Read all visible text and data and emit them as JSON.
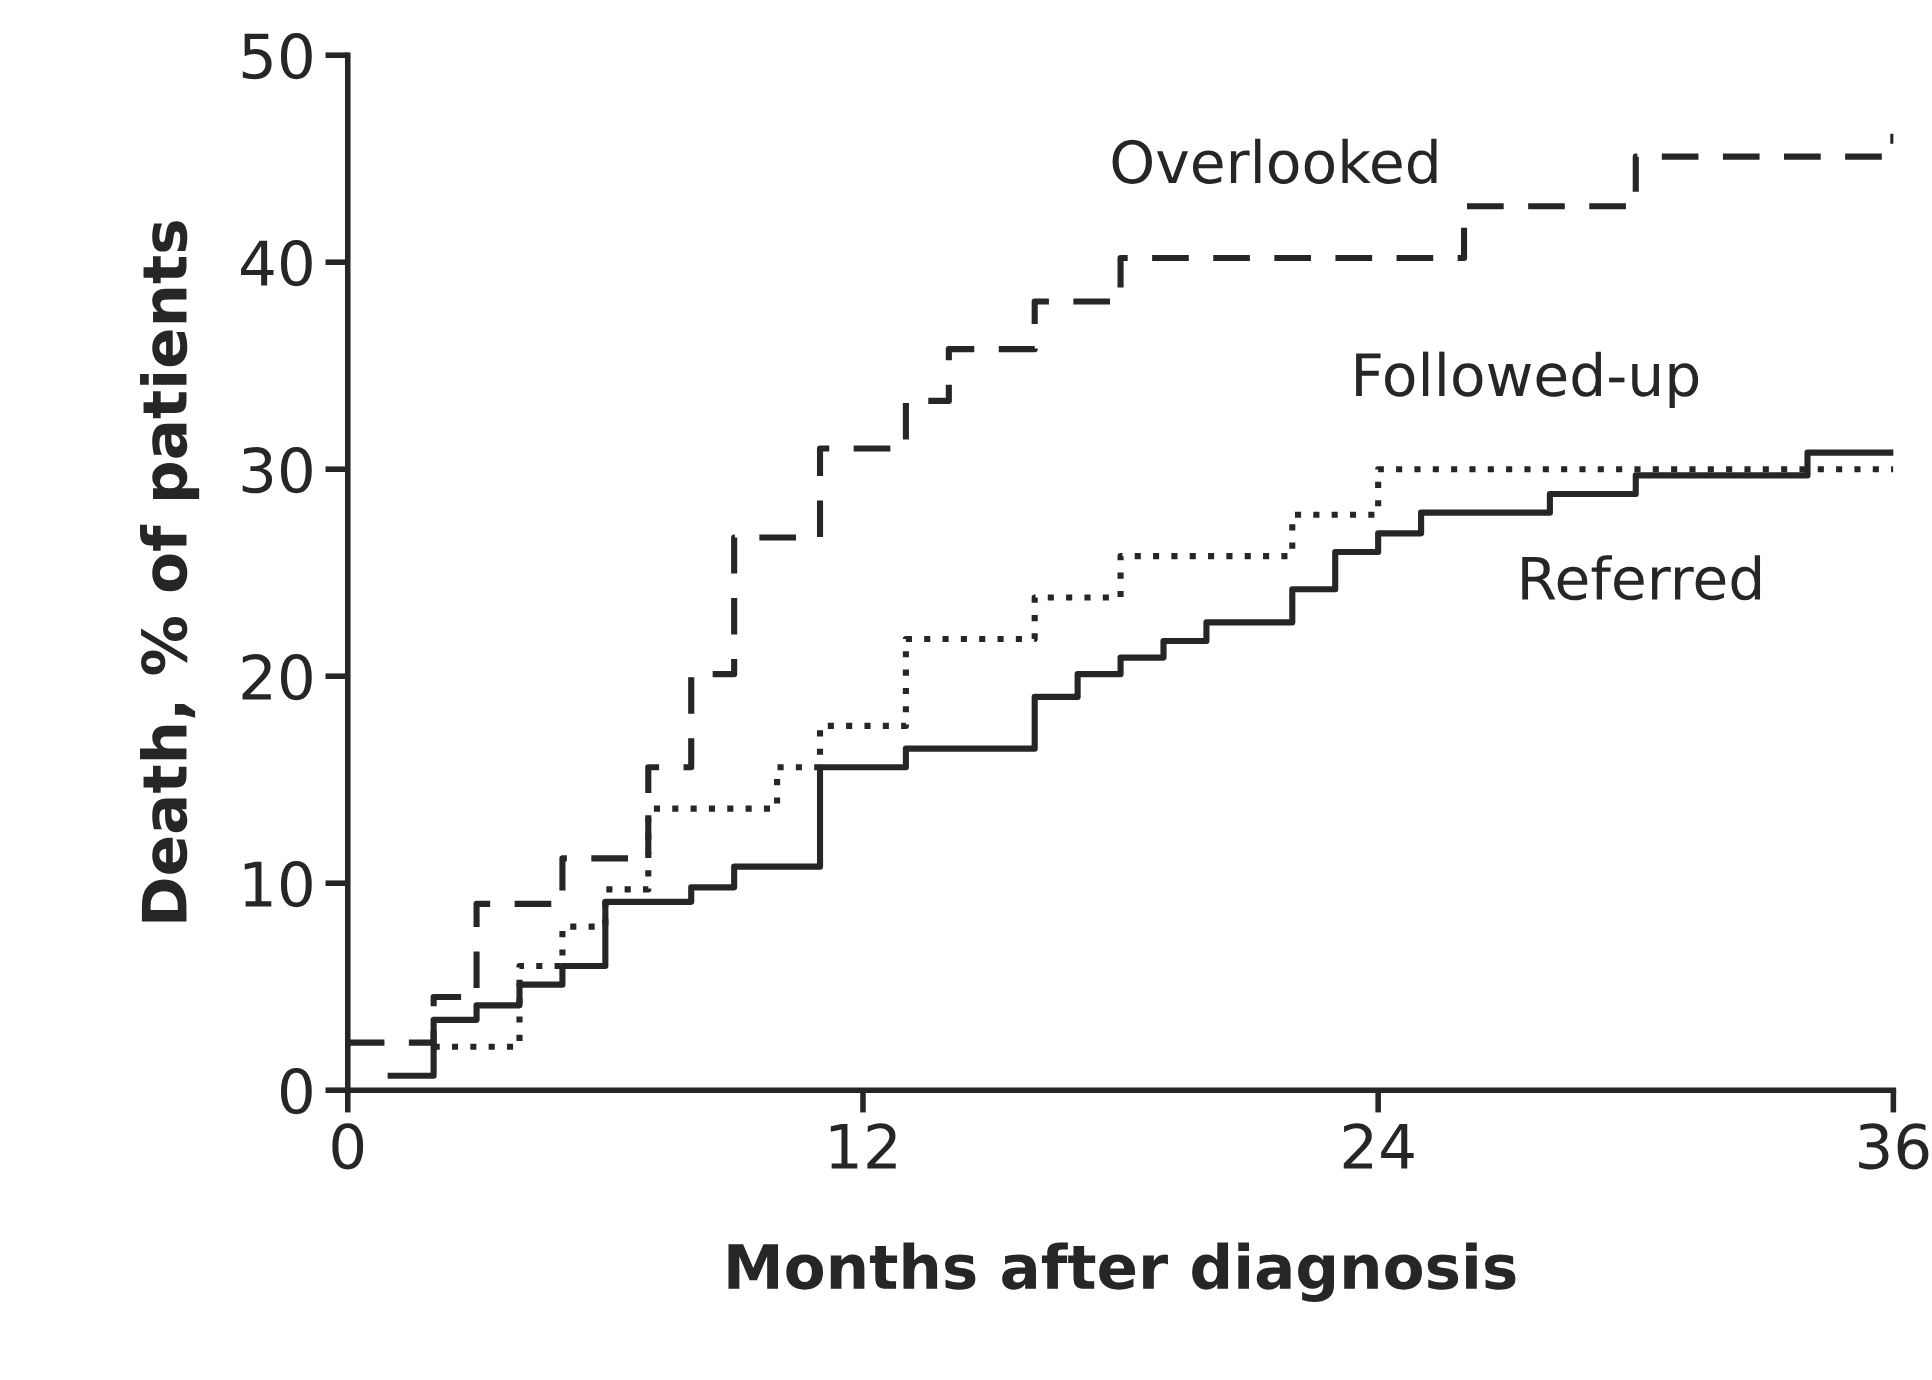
{
  "chart_data": {
    "type": "step",
    "xlabel": "Months after diagnosis",
    "ylabel": "Death, % of patients",
    "xlim": [
      0,
      36
    ],
    "xticks": [
      0,
      12,
      24,
      36
    ],
    "ylim": [
      0,
      50
    ],
    "yticks": [
      0,
      10,
      20,
      30,
      40,
      50
    ],
    "grid": false,
    "marker": "none",
    "series": [
      {
        "name": "Overlooked",
        "color": "#262626",
        "line_style": "dashed",
        "x": [
          0,
          2,
          3,
          5,
          7,
          8,
          9,
          11,
          13,
          14,
          16,
          18,
          26,
          30,
          36
        ],
        "values": [
          2.3,
          4.5,
          9.0,
          11.2,
          15.6,
          20.1,
          26.7,
          31.0,
          33.3,
          35.8,
          38.1,
          40.2,
          42.7,
          45.1,
          46.2
        ]
      },
      {
        "name": "Followed-up",
        "color": "#262626",
        "line_style": "dotted",
        "x": [
          2,
          4,
          5,
          6,
          7,
          10,
          11,
          13,
          16,
          18,
          22,
          24,
          36
        ],
        "values": [
          2.1,
          6.0,
          7.9,
          9.7,
          13.6,
          15.6,
          17.6,
          21.8,
          23.8,
          25.8,
          27.8,
          30.0,
          30.0
        ]
      },
      {
        "name": "Referred",
        "color": "#262626",
        "line_style": "solid",
        "x": [
          1,
          2,
          3,
          4,
          5,
          6,
          8,
          9,
          11,
          13,
          16,
          17,
          18,
          19,
          20,
          22,
          23,
          24,
          25,
          28,
          30,
          34,
          36
        ],
        "values": [
          0.7,
          3.4,
          4.1,
          5.1,
          6.0,
          9.1,
          9.8,
          10.8,
          15.6,
          16.5,
          19.0,
          20.1,
          20.9,
          21.7,
          22.6,
          24.2,
          26.0,
          26.9,
          27.9,
          28.8,
          29.7,
          30.8,
          30.8
        ]
      }
    ]
  }
}
